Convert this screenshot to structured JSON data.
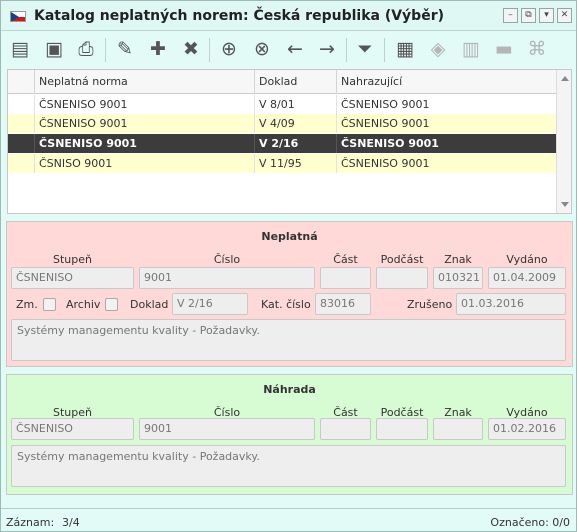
{
  "window": {
    "title": "Katalog neplatných norem: Česká republika (Výběr)",
    "flag_icon": "czech-flag-icon",
    "buttons": {
      "minimize": "–",
      "popout": "⧉",
      "menu": "▾",
      "close": "✕"
    }
  },
  "toolbar": {
    "icons": [
      "window-icon",
      "monitor-icon",
      "print-icon",
      "edit-icon",
      "add-icon",
      "delete-icon",
      "find-icon",
      "find-clear-icon",
      "back-icon",
      "forward-icon",
      "filter-icon",
      "stamp-icon",
      "export-icon",
      "archive-icon",
      "folder-icon",
      "pdf-icon"
    ]
  },
  "grid": {
    "headers": [
      "Neplatná norma",
      "Doklad",
      "Nahrazující"
    ],
    "rows": [
      {
        "norma": "ČSNENISO 9001",
        "doklad": "V 8/01",
        "nahrazujici": "ČSNENISO 9001"
      },
      {
        "norma": "ČSNENISO 9001",
        "doklad": "V 4/09",
        "nahrazujici": "ČSNENISO 9001"
      },
      {
        "norma": "ČSNENISO 9001",
        "doklad": "V 2/16",
        "nahrazujici": "ČSNENISO 9001"
      },
      {
        "norma": "ČSNISO 9001",
        "doklad": "V 11/95",
        "nahrazujici": "ČSNENISO 9001"
      }
    ],
    "selected_row": 2
  },
  "neplatna": {
    "title": "Neplatná",
    "labels": {
      "stupen": "Stupeň",
      "cislo": "Číslo",
      "cast": "Část",
      "podcast": "Podčást",
      "znak": "Znak",
      "vydano": "Vydáno",
      "zm": "Zm.",
      "archiv": "Archiv",
      "doklad": "Doklad",
      "kat_cislo": "Kat. číslo",
      "zruseno": "Zrušeno"
    },
    "values": {
      "stupen": "ČSNENISO",
      "cislo": "9001",
      "cast": "",
      "podcast": "",
      "znak": "010321",
      "vydano": "01.04.2009",
      "doklad": "V 2/16",
      "kat_cislo": "83016",
      "zruseno": "01.03.2016",
      "nazev": "Systémy managementu kvality - Požadavky."
    }
  },
  "nahrada": {
    "title": "Náhrada",
    "labels": {
      "stupen": "Stupeň",
      "cislo": "Číslo",
      "cast": "Část",
      "podcast": "Podčást",
      "znak": "Znak",
      "vydano": "Vydáno"
    },
    "values": {
      "stupen": "ČSNENISO",
      "cislo": "9001",
      "cast": "",
      "podcast": "",
      "znak": "",
      "vydano": "01.02.2016",
      "nazev": "Systémy managementu kvality - Požadavky."
    }
  },
  "status": {
    "zaznam_label": "Záznam:",
    "zaznam_value": "3/4",
    "oznaceno": "Označeno: 0/0"
  }
}
